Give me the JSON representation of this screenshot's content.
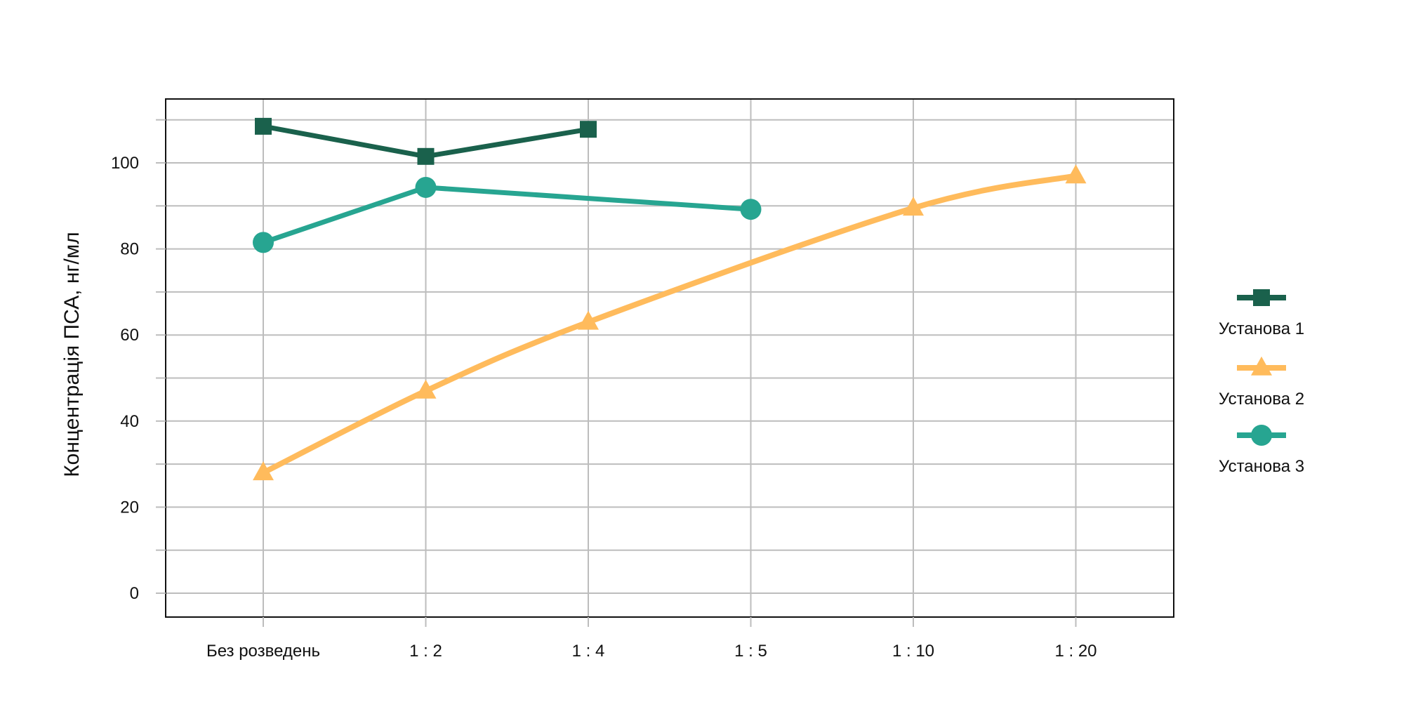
{
  "chart_data": {
    "type": "line",
    "categories": [
      "Без розведень",
      "1 : 2",
      "1 : 4",
      "1 : 5",
      "1 : 10",
      "1 : 20"
    ],
    "ylabel": "Концентрація ПСА, нг/мл",
    "y_ticks": [
      0,
      20,
      40,
      60,
      80,
      100
    ],
    "ylim": [
      -6,
      115
    ],
    "grid": true,
    "legend_placement": "right",
    "series": [
      {
        "name": "Установа 1",
        "color": "#1a614c",
        "marker": "square",
        "smooth": false,
        "values": [
          108.5,
          101.5,
          107.8,
          null,
          null,
          null
        ]
      },
      {
        "name": "Установа 2",
        "color": "#ffbb5c",
        "marker": "triangle",
        "smooth": true,
        "values": [
          28,
          47,
          63,
          null,
          89.5,
          97
        ]
      },
      {
        "name": "Установа 3",
        "color": "#27a591",
        "marker": "circle",
        "smooth": false,
        "values": [
          81.5,
          94.3,
          null,
          89.2,
          null,
          null
        ]
      }
    ]
  }
}
